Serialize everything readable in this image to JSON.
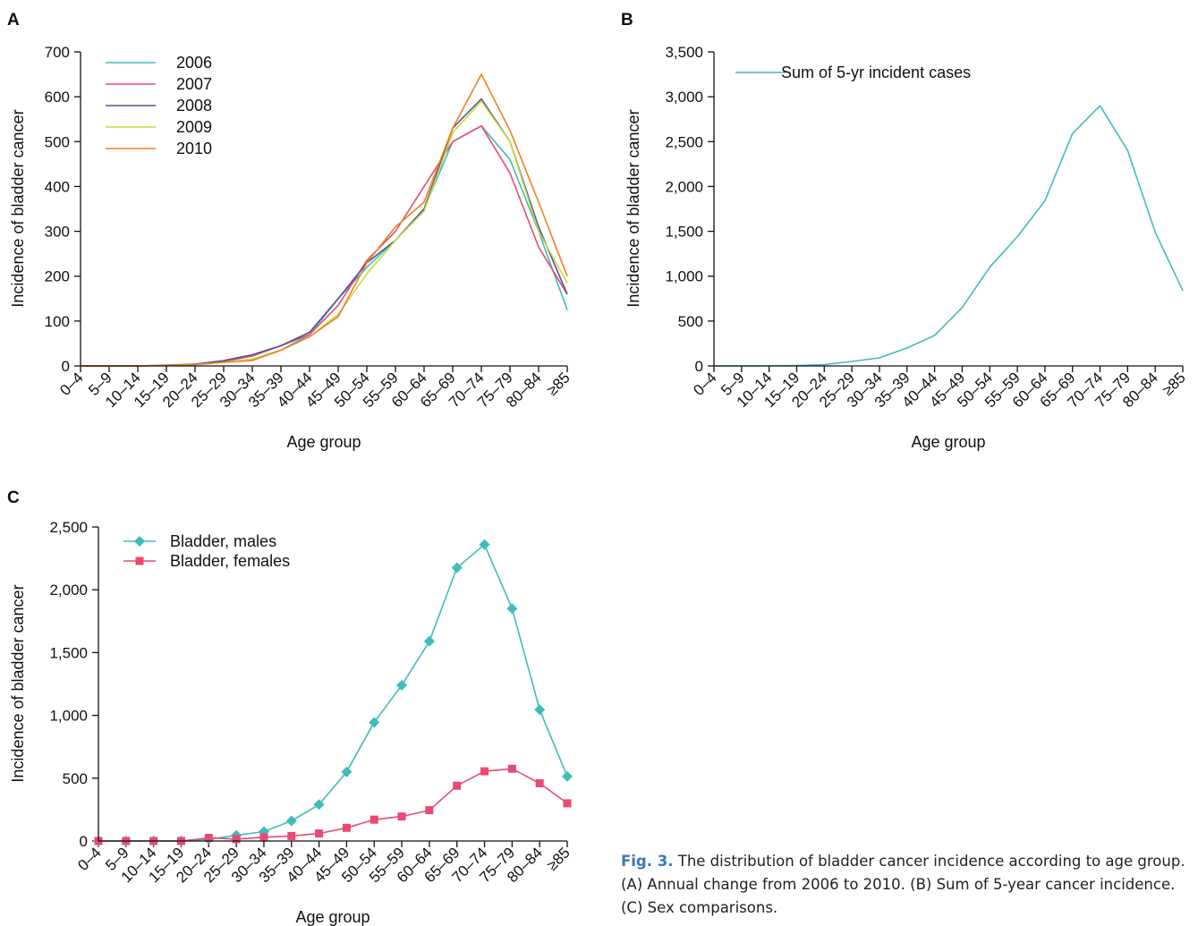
{
  "caption": {
    "label": "Fig. 3.",
    "text": "The distribution of bladder cancer incidence according to age group. (A) Annual change from 2006 to 2010. (B) Sum of 5-year cancer incidence. (C) Sex comparisons."
  },
  "chart_data": [
    {
      "panel": "A",
      "type": "line",
      "xlabel": "Age group",
      "ylabel": "Incidence of bladder cancer",
      "ylim": [
        0,
        700
      ],
      "yticks": [
        0,
        100,
        200,
        300,
        400,
        500,
        600,
        700
      ],
      "ytick_labels": [
        "0",
        "100",
        "200",
        "300",
        "400",
        "500",
        "600",
        "700"
      ],
      "categories": [
        "0–4",
        "5–9",
        "10–14",
        "15–19",
        "20–24",
        "25–29",
        "30–34",
        "35–39",
        "40–44",
        "45–49",
        "50–54",
        "55–59",
        "60–64",
        "65–69",
        "70–74",
        "75–79",
        "80–84",
        "≥85"
      ],
      "legend": "top-left",
      "series": [
        {
          "name": "2006",
          "color": "#3fbcbc",
          "values": [
            0,
            0,
            0,
            1,
            3,
            8,
            15,
            35,
            70,
            150,
            220,
            280,
            350,
            500,
            535,
            460,
            300,
            125
          ]
        },
        {
          "name": "2007",
          "color": "#e84a73",
          "values": [
            0,
            0,
            0,
            2,
            4,
            10,
            22,
            45,
            70,
            135,
            235,
            300,
            400,
            500,
            535,
            430,
            265,
            160
          ]
        },
        {
          "name": "2008",
          "color": "#55519c",
          "values": [
            0,
            0,
            0,
            1,
            4,
            12,
            25,
            45,
            75,
            150,
            230,
            280,
            350,
            530,
            595,
            500,
            310,
            160
          ]
        },
        {
          "name": "2009",
          "color": "#c5dc3c",
          "values": [
            0,
            0,
            0,
            1,
            3,
            8,
            15,
            35,
            65,
            115,
            205,
            280,
            345,
            520,
            590,
            500,
            300,
            185
          ]
        },
        {
          "name": "2010",
          "color": "#f07f1c",
          "values": [
            0,
            0,
            0,
            1,
            3,
            8,
            12,
            35,
            65,
            110,
            230,
            310,
            365,
            530,
            650,
            525,
            365,
            200
          ]
        }
      ]
    },
    {
      "panel": "B",
      "type": "line",
      "xlabel": "Age group",
      "ylabel": "Incidence of bladder cancer",
      "ylim": [
        0,
        3500
      ],
      "yticks": [
        0,
        500,
        1000,
        1500,
        2000,
        2500,
        3000,
        3500
      ],
      "ytick_labels": [
        "0",
        "500",
        "1,000",
        "1,500",
        "2,000",
        "2,500",
        "3,000",
        "3,500"
      ],
      "categories": [
        "0–4",
        "5–9",
        "10–14",
        "15–19",
        "20–24",
        "25–29",
        "30–34",
        "35–39",
        "40–44",
        "45–49",
        "50–54",
        "55–59",
        "60–64",
        "65–69",
        "70–74",
        "75–79",
        "80–84",
        "≥85"
      ],
      "legend": "top-left",
      "series": [
        {
          "name": "Sum of 5-yr incident cases",
          "color": "#3fbcbc",
          "values": [
            0,
            0,
            0,
            5,
            15,
            50,
            90,
            200,
            340,
            650,
            1100,
            1440,
            1840,
            2590,
            2900,
            2400,
            1490,
            840
          ]
        }
      ]
    },
    {
      "panel": "C",
      "type": "line",
      "xlabel": "Age group",
      "ylabel": "Incidence of bladder cancer",
      "ylim": [
        0,
        2500
      ],
      "yticks": [
        0,
        500,
        1000,
        1500,
        2000,
        2500
      ],
      "ytick_labels": [
        "0",
        "500",
        "1,000",
        "1,500",
        "2,000",
        "2,500"
      ],
      "categories": [
        "0–4",
        "5–9",
        "10–14",
        "15–19",
        "20–24",
        "25–29",
        "30–34",
        "35–39",
        "40–44",
        "45–49",
        "50–54",
        "55–59",
        "60–64",
        "65–69",
        "70–74",
        "75–79",
        "80–84",
        "≥85"
      ],
      "legend": "top-left",
      "series": [
        {
          "name": "Bladder, males",
          "color": "#3fbcbc",
          "marker": "diamond",
          "values": [
            0,
            0,
            0,
            0,
            15,
            45,
            75,
            160,
            290,
            550,
            945,
            1240,
            1590,
            2175,
            2360,
            1850,
            1045,
            515
          ]
        },
        {
          "name": "Bladder, females",
          "color": "#e84a73",
          "marker": "square",
          "values": [
            0,
            0,
            0,
            0,
            25,
            15,
            30,
            40,
            60,
            105,
            170,
            195,
            245,
            440,
            555,
            575,
            460,
            300
          ]
        }
      ]
    }
  ]
}
